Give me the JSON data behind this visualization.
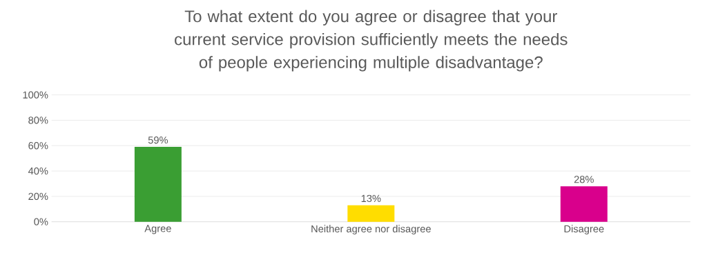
{
  "chart_data": {
    "type": "bar",
    "title": "To what extent do you agree or disagree that your current service provision sufficiently meets the needs of people experiencing multiple disadvantage?",
    "categories": [
      "Agree",
      "Neither agree nor disagree",
      "Disagree"
    ],
    "values": [
      59,
      13,
      28
    ],
    "colors": [
      "#3a9e33",
      "#ffdd00",
      "#d9008c"
    ],
    "value_labels": [
      "59%",
      "13%",
      "28%"
    ],
    "ylim": [
      0,
      100
    ],
    "yticks": [
      {
        "value": 0,
        "label": "0%"
      },
      {
        "value": 20,
        "label": "20%"
      },
      {
        "value": 40,
        "label": "40%"
      },
      {
        "value": 60,
        "label": "60%"
      },
      {
        "value": 80,
        "label": "80%"
      },
      {
        "value": 100,
        "label": "100%"
      }
    ],
    "grid": "y"
  }
}
